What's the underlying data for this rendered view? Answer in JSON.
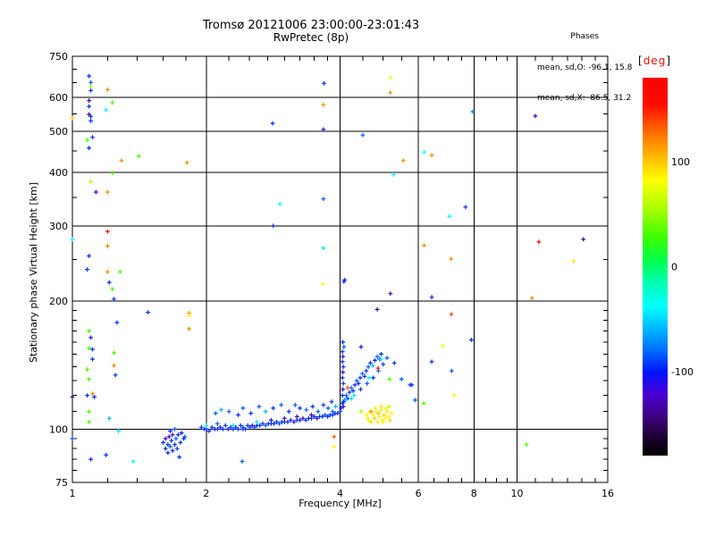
{
  "header": {
    "title": "Tromsø 20121006 23:00:00-23:01:43",
    "subtitle": "RwPretec (8p)",
    "phases": {
      "heading": "Phases",
      "line_o": "mean, sd,O: -96.1, 15.8",
      "line_x": "mean, sd,X:  86.5, 31.2"
    }
  },
  "colorbar_unit": {
    "open": "[",
    "text": "deg",
    "close": "]"
  },
  "colors": {
    "background": "#ffffff",
    "axis": "#000000",
    "unit_label_red": "#e01000"
  },
  "chart_data": {
    "type": "scatter",
    "title": "Tromsø 20121006 23:00:00-23:01:43",
    "subtitle": "RwPretec (8p)",
    "xlabel": "Frequency [MHz]",
    "ylabel": "Stationary phase Virtual Height [km]",
    "x_scale": "log",
    "y_scale": "log",
    "xlim": [
      1,
      16
    ],
    "ylim": [
      75,
      750
    ],
    "x_major_ticks": [
      1,
      2,
      4,
      6,
      8,
      10,
      16
    ],
    "x_minor_ticks": [
      1.2,
      1.4,
      1.6,
      1.8,
      2.25,
      2.5,
      2.75,
      3,
      3.25,
      3.5,
      3.75,
      4.5,
      5,
      5.5,
      6.5,
      7,
      7.5,
      8.5,
      9,
      9.5,
      11,
      12,
      13,
      14,
      15
    ],
    "y_major_ticks": [
      75,
      100,
      200,
      300,
      400,
      500,
      600,
      750
    ],
    "y_minor_ticks": [
      80,
      85,
      90,
      95,
      110,
      120,
      130,
      140,
      150,
      160,
      170,
      180,
      190,
      250,
      350,
      450,
      550,
      650,
      700
    ],
    "x_gridlines": [
      2,
      4,
      6,
      8,
      10
    ],
    "y_gridlines": [
      100,
      200,
      300,
      400,
      500,
      600
    ],
    "grid": true,
    "stats": {
      "mean_O": -96.1,
      "sd_O": 15.8,
      "mean_X": 86.5,
      "sd_X": 31.2
    },
    "colorbar": {
      "unit": "[deg]",
      "range": [
        180,
        -180
      ],
      "ticks": [
        100,
        0,
        -100
      ],
      "stops": [
        [
          180,
          "#ff0000"
        ],
        [
          155,
          "#ff0a00"
        ],
        [
          125,
          "#ff7700"
        ],
        [
          100,
          "#ffc800"
        ],
        [
          82,
          "#ffff00"
        ],
        [
          55,
          "#a8ff00"
        ],
        [
          28,
          "#3cff00"
        ],
        [
          5,
          "#00ff50"
        ],
        [
          -15,
          "#00ffb4"
        ],
        [
          -38,
          "#00ffff"
        ],
        [
          -60,
          "#00b4ff"
        ],
        [
          -82,
          "#0064ff"
        ],
        [
          -100,
          "#0014ff"
        ],
        [
          -122,
          "#4b00d2"
        ],
        [
          -145,
          "#3c0078"
        ],
        [
          -162,
          "#1e0032"
        ],
        [
          -180,
          "#000000"
        ]
      ]
    },
    "points": [
      [
        1.95,
        101,
        -95
      ],
      [
        1.98,
        100,
        -95
      ],
      [
        2.0,
        100,
        -95
      ],
      [
        2.0,
        102,
        -45
      ],
      [
        2.03,
        99,
        -95
      ],
      [
        2.06,
        101,
        -95
      ],
      [
        2.09,
        100,
        -110
      ],
      [
        2.12,
        100,
        -95
      ],
      [
        2.12,
        103,
        -85
      ],
      [
        2.15,
        101,
        -95
      ],
      [
        2.18,
        100,
        -95
      ],
      [
        2.21,
        102,
        -95
      ],
      [
        2.24,
        100,
        -110
      ],
      [
        2.27,
        101,
        -95
      ],
      [
        2.3,
        100,
        -95
      ],
      [
        2.3,
        102,
        -45
      ],
      [
        2.33,
        101,
        -95
      ],
      [
        2.36,
        100,
        -95
      ],
      [
        2.39,
        102,
        -95
      ],
      [
        2.42,
        101,
        -85
      ],
      [
        2.45,
        100,
        -95
      ],
      [
        2.48,
        102,
        -95
      ],
      [
        2.51,
        101,
        -95
      ],
      [
        2.54,
        102,
        -110
      ],
      [
        2.57,
        101,
        -95
      ],
      [
        2.6,
        102,
        -95
      ],
      [
        2.6,
        104,
        -45
      ],
      [
        2.64,
        102,
        -95
      ],
      [
        2.68,
        103,
        -95
      ],
      [
        2.72,
        102,
        -85
      ],
      [
        2.76,
        103,
        -95
      ],
      [
        2.8,
        103,
        -95
      ],
      [
        2.8,
        105,
        -110
      ],
      [
        2.84,
        103,
        -95
      ],
      [
        2.88,
        104,
        -95
      ],
      [
        2.92,
        103,
        -85
      ],
      [
        2.96,
        104,
        -95
      ],
      [
        3.0,
        104,
        -95
      ],
      [
        3.0,
        106,
        -130
      ],
      [
        3.05,
        104,
        -95
      ],
      [
        3.1,
        105,
        -95
      ],
      [
        3.15,
        104,
        -130
      ],
      [
        3.2,
        105,
        -95
      ],
      [
        3.2,
        107,
        -130
      ],
      [
        3.25,
        105,
        -95
      ],
      [
        3.3,
        106,
        -130
      ],
      [
        3.35,
        105,
        -95
      ],
      [
        3.4,
        106,
        -95
      ],
      [
        3.45,
        106,
        -95
      ],
      [
        3.45,
        108,
        -130
      ],
      [
        3.5,
        107,
        -95
      ],
      [
        3.55,
        106,
        -130
      ],
      [
        3.6,
        107,
        -95
      ],
      [
        3.65,
        107,
        -95
      ],
      [
        3.7,
        108,
        -85
      ],
      [
        3.75,
        107,
        -95
      ],
      [
        3.8,
        108,
        -95
      ],
      [
        3.85,
        108,
        -95
      ],
      [
        3.85,
        110,
        -85
      ],
      [
        3.9,
        109,
        -95
      ],
      [
        3.95,
        109,
        -95
      ],
      [
        4.0,
        110,
        -95
      ],
      [
        1.6,
        93,
        -95
      ],
      [
        1.62,
        90,
        -100
      ],
      [
        1.62,
        95,
        -130
      ],
      [
        1.64,
        92,
        -95
      ],
      [
        1.64,
        88,
        -95
      ],
      [
        1.65,
        96,
        -110
      ],
      [
        1.66,
        91,
        -85
      ],
      [
        1.67,
        94,
        -95
      ],
      [
        1.68,
        89,
        -95
      ],
      [
        1.68,
        97,
        -130
      ],
      [
        1.7,
        92,
        -95
      ],
      [
        1.71,
        95,
        -85
      ],
      [
        1.72,
        90,
        -95
      ],
      [
        1.73,
        97,
        -95
      ],
      [
        1.75,
        93,
        -95
      ],
      [
        1.76,
        98,
        -110
      ],
      [
        1.78,
        95,
        -95
      ],
      [
        1.66,
        99,
        -95
      ],
      [
        1.7,
        100,
        -85
      ],
      [
        1.74,
        86,
        -95
      ],
      [
        1.79,
        96,
        -85
      ],
      [
        2.1,
        109,
        -85
      ],
      [
        2.16,
        111,
        -60
      ],
      [
        2.25,
        110,
        -85
      ],
      [
        2.36,
        108,
        -95
      ],
      [
        2.42,
        112,
        -85
      ],
      [
        2.52,
        109,
        -95
      ],
      [
        2.63,
        113,
        -85
      ],
      [
        2.72,
        110,
        -60
      ],
      [
        2.83,
        112,
        -95
      ],
      [
        2.95,
        114,
        -85
      ],
      [
        3.07,
        110,
        -95
      ],
      [
        3.17,
        114,
        -85
      ],
      [
        3.25,
        112,
        -95
      ],
      [
        3.36,
        111,
        -85
      ],
      [
        3.47,
        113,
        -95
      ],
      [
        3.57,
        110,
        -85
      ],
      [
        3.67,
        114,
        -95
      ],
      [
        3.76,
        112,
        -85
      ],
      [
        3.83,
        116,
        -95
      ],
      [
        3.91,
        113,
        -60
      ],
      [
        4.02,
        112,
        -95
      ],
      [
        4.05,
        115,
        -95
      ],
      [
        4.07,
        113,
        -110
      ],
      [
        4.1,
        117,
        -95
      ],
      [
        4.13,
        120,
        -85
      ],
      [
        4.16,
        118,
        -95
      ],
      [
        4.2,
        122,
        -95
      ],
      [
        4.24,
        125,
        -85
      ],
      [
        4.28,
        123,
        -95
      ],
      [
        4.32,
        127,
        -95
      ],
      [
        4.36,
        130,
        -85
      ],
      [
        4.4,
        128,
        -110
      ],
      [
        4.44,
        132,
        -95
      ],
      [
        4.49,
        135,
        -85
      ],
      [
        4.54,
        133,
        -95
      ],
      [
        4.58,
        137,
        -95
      ],
      [
        4.63,
        140,
        -85
      ],
      [
        4.68,
        143,
        -95
      ],
      [
        4.74,
        141,
        -60
      ],
      [
        4.79,
        145,
        -95
      ],
      [
        4.85,
        148,
        -85
      ],
      [
        4.91,
        146,
        -95
      ],
      [
        4.95,
        150,
        -95
      ],
      [
        4.3,
        120,
        -45
      ],
      [
        4.45,
        124,
        -95
      ],
      [
        4.6,
        128,
        -85
      ],
      [
        4.75,
        132,
        -95
      ],
      [
        4.88,
        137,
        -85
      ],
      [
        5.0,
        142,
        -95
      ],
      [
        5.1,
        147,
        -85
      ],
      [
        5.3,
        143,
        -95
      ],
      [
        5.5,
        131,
        -85
      ],
      [
        5.75,
        127,
        -95
      ],
      [
        4.12,
        117,
        -45
      ],
      [
        4.24,
        118,
        -50
      ],
      [
        4.46,
        110,
        55
      ],
      [
        4.05,
        152,
        -95
      ],
      [
        4.06,
        148,
        -110
      ],
      [
        4.05,
        144,
        -95
      ],
      [
        4.07,
        140,
        -95
      ],
      [
        4.06,
        136,
        -110
      ],
      [
        4.05,
        132,
        -95
      ],
      [
        4.07,
        128,
        -95
      ],
      [
        4.06,
        124,
        -110
      ],
      [
        4.05,
        120,
        -95
      ],
      [
        4.07,
        116,
        -95
      ],
      [
        4.08,
        156,
        -85
      ],
      [
        4.06,
        160,
        -95
      ],
      [
        4.58,
        108,
        85
      ],
      [
        4.62,
        106,
        90
      ],
      [
        4.66,
        110,
        85
      ],
      [
        4.7,
        104,
        95
      ],
      [
        4.74,
        108,
        85
      ],
      [
        4.78,
        106,
        100
      ],
      [
        4.82,
        110,
        85
      ],
      [
        4.86,
        104,
        90
      ],
      [
        4.9,
        107,
        85
      ],
      [
        4.94,
        111,
        90
      ],
      [
        4.98,
        105,
        85
      ],
      [
        5.02,
        108,
        95
      ],
      [
        5.06,
        106,
        85
      ],
      [
        5.1,
        110,
        90
      ],
      [
        5.14,
        107,
        85
      ],
      [
        5.18,
        105,
        95
      ],
      [
        5.22,
        109,
        85
      ],
      [
        4.8,
        112,
        70
      ],
      [
        4.95,
        113,
        90
      ],
      [
        5.08,
        112,
        85
      ],
      [
        4.7,
        110,
        120
      ],
      [
        5.15,
        113,
        60
      ],
      [
        4.88,
        109,
        100
      ],
      [
        5.0,
        104,
        85
      ],
      [
        4.64,
        105,
        85
      ],
      [
        4.87,
        139,
        150
      ],
      [
        4.16,
        125,
        140
      ],
      [
        5.17,
        131,
        30
      ],
      [
        4.95,
        146,
        -40
      ],
      [
        4.65,
        132,
        -40
      ],
      [
        5.8,
        127,
        -95
      ],
      [
        6.17,
        115,
        30
      ],
      [
        5.9,
        117,
        -85
      ],
      [
        1.09,
        674,
        -95
      ],
      [
        1.1,
        651,
        -85
      ],
      [
        1.1,
        636,
        60
      ],
      [
        1.1,
        623,
        -90
      ],
      [
        1.2,
        626,
        120
      ],
      [
        1.09,
        590,
        -140
      ],
      [
        1.23,
        584,
        30
      ],
      [
        1.09,
        572,
        -95
      ],
      [
        1.19,
        561,
        -40
      ],
      [
        1.09,
        548,
        -140
      ],
      [
        1.1,
        542,
        -95
      ],
      [
        1.0,
        537,
        105
      ],
      [
        1.1,
        529,
        -95
      ],
      [
        1.11,
        484,
        -95
      ],
      [
        1.08,
        477,
        30
      ],
      [
        1.09,
        457,
        -95
      ],
      [
        1.29,
        427,
        120
      ],
      [
        1.81,
        422,
        120
      ],
      [
        1.41,
        437,
        30
      ],
      [
        1.23,
        399,
        30
      ],
      [
        1.1,
        381,
        60
      ],
      [
        1.13,
        360,
        -130
      ],
      [
        1.2,
        360,
        120
      ],
      [
        1.2,
        291,
        160
      ],
      [
        1.0,
        279,
        -40
      ],
      [
        1.2,
        269,
        120
      ],
      [
        1.09,
        255,
        -95
      ],
      [
        1.08,
        237,
        -95
      ],
      [
        1.2,
        234,
        120
      ],
      [
        1.28,
        234,
        30
      ],
      [
        1.21,
        221,
        -95
      ],
      [
        1.23,
        213,
        30
      ],
      [
        1.24,
        202,
        -95
      ],
      [
        1.26,
        178,
        -95
      ],
      [
        1.09,
        170,
        30
      ],
      [
        1.1,
        164,
        -95
      ],
      [
        1.09,
        155,
        30
      ],
      [
        1.11,
        154,
        -95
      ],
      [
        1.24,
        151,
        30
      ],
      [
        1.11,
        146,
        -95
      ],
      [
        1.08,
        138,
        30
      ],
      [
        1.24,
        141,
        120
      ],
      [
        1.25,
        134,
        -95
      ],
      [
        1.09,
        131,
        30
      ],
      [
        1.0,
        119,
        -150
      ],
      [
        1.08,
        120,
        -95
      ],
      [
        1.11,
        121,
        120
      ],
      [
        1.12,
        119,
        -95
      ],
      [
        1.09,
        110,
        30
      ],
      [
        1.21,
        106,
        -60
      ],
      [
        1.09,
        104,
        30
      ],
      [
        1.27,
        99,
        -40
      ],
      [
        1.0,
        95,
        -85
      ],
      [
        1.1,
        85,
        -95
      ],
      [
        1.19,
        87,
        -95
      ],
      [
        1.37,
        84,
        -40
      ],
      [
        1.48,
        188,
        -95
      ],
      [
        1.83,
        187,
        120
      ],
      [
        1.83,
        185,
        85
      ],
      [
        1.83,
        172,
        120
      ],
      [
        2.83,
        300,
        -95
      ],
      [
        2.93,
        338,
        -40
      ],
      [
        2.82,
        522,
        -95
      ],
      [
        3.68,
        648,
        -95
      ],
      [
        3.67,
        577,
        120
      ],
      [
        3.67,
        505,
        -110
      ],
      [
        3.67,
        347,
        -85
      ],
      [
        3.67,
        266,
        -45
      ],
      [
        3.66,
        219,
        85
      ],
      [
        5.19,
        668,
        85
      ],
      [
        5.19,
        616,
        120
      ],
      [
        4.5,
        490,
        -85
      ],
      [
        5.55,
        427,
        120
      ],
      [
        6.18,
        447,
        -40
      ],
      [
        6.43,
        439,
        120
      ],
      [
        5.27,
        396,
        -40
      ],
      [
        7.05,
        316,
        -40
      ],
      [
        6.18,
        270,
        120
      ],
      [
        7.11,
        251,
        120
      ],
      [
        4.08,
        222,
        -110
      ],
      [
        4.1,
        224,
        -95
      ],
      [
        5.19,
        208,
        -130
      ],
      [
        6.43,
        204,
        -95
      ],
      [
        4.85,
        191,
        -145
      ],
      [
        7.12,
        186,
        140
      ],
      [
        4.46,
        156,
        -110
      ],
      [
        7.95,
        556,
        -75
      ],
      [
        11.0,
        543,
        -130
      ],
      [
        7.66,
        332,
        -95
      ],
      [
        11.2,
        275,
        160
      ],
      [
        14.1,
        279,
        -140
      ],
      [
        13.4,
        248,
        90
      ],
      [
        10.8,
        203,
        120
      ],
      [
        7.9,
        162,
        -95
      ],
      [
        6.81,
        157,
        85
      ],
      [
        6.43,
        144,
        -95
      ],
      [
        7.13,
        137,
        -85
      ],
      [
        7.22,
        120,
        85
      ],
      [
        10.5,
        92,
        30
      ],
      [
        3.88,
        96,
        130
      ],
      [
        3.88,
        91,
        85
      ],
      [
        2.41,
        84,
        -85
      ],
      [
        2.42,
        100,
        -95
      ]
    ]
  }
}
